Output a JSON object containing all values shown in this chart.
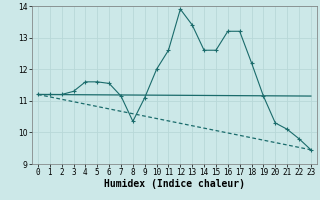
{
  "xlabel": "Humidex (Indice chaleur)",
  "ylabel": "",
  "background_color": "#cce8e8",
  "grid_color": "#b8d8d8",
  "line_color": "#1a6b6b",
  "xlim": [
    -0.5,
    23.5
  ],
  "ylim": [
    9,
    14
  ],
  "yticks": [
    9,
    10,
    11,
    12,
    13,
    14
  ],
  "xticks": [
    0,
    1,
    2,
    3,
    4,
    5,
    6,
    7,
    8,
    9,
    10,
    11,
    12,
    13,
    14,
    15,
    16,
    17,
    18,
    19,
    20,
    21,
    22,
    23
  ],
  "series1_x": [
    0,
    1,
    2,
    3,
    4,
    5,
    6,
    7,
    8,
    9,
    10,
    11,
    12,
    13,
    14,
    15,
    16,
    17,
    18,
    19,
    20,
    21,
    22,
    23
  ],
  "series1_y": [
    11.2,
    11.2,
    11.2,
    11.3,
    11.6,
    11.6,
    11.55,
    11.15,
    10.35,
    11.1,
    12.0,
    12.6,
    13.9,
    13.4,
    12.6,
    12.6,
    13.2,
    13.2,
    12.2,
    11.15,
    10.3,
    10.1,
    9.8,
    9.45
  ],
  "series2_x": [
    0,
    23
  ],
  "series2_y": [
    11.2,
    11.15
  ],
  "series3_x": [
    0,
    23
  ],
  "series3_y": [
    11.2,
    9.45
  ],
  "tick_fontsize": 5.5,
  "xlabel_fontsize": 7.0
}
